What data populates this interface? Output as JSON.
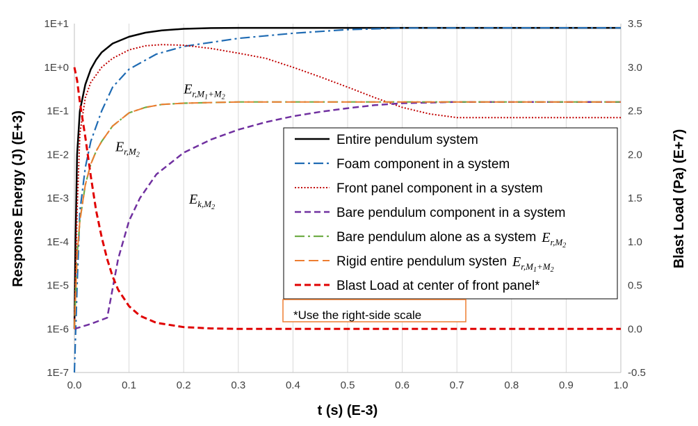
{
  "chart_data": {
    "type": "line",
    "xlabel": "t (s) (E-3)",
    "ylabel": "Response Energy (J) (E+3)",
    "y2label": "Blast Load (Pa) (E+7)",
    "xlim": [
      0,
      1
    ],
    "ylim": [
      1e-07,
      10
    ],
    "y_scale": "log",
    "y2lim": [
      -0.5,
      3.5
    ],
    "grid": "vertical",
    "legend_placement": "center-right",
    "x_ticks": [
      "0.0",
      "0.1",
      "0.2",
      "0.3",
      "0.4",
      "0.5",
      "0.6",
      "0.7",
      "0.8",
      "0.9",
      "1.0"
    ],
    "y_ticks": [
      "1E-7",
      "1E-6",
      "1E-5",
      "1E-4",
      "1E-3",
      "1E-2",
      "1E-1",
      "1E+0",
      "1E+1"
    ],
    "y2_ticks": [
      "-0.5",
      "0.0",
      "0.5",
      "1.0",
      "1.5",
      "2.0",
      "2.5",
      "3.0",
      "3.5"
    ],
    "series": [
      {
        "name": "Entire pendulum system",
        "color": "#000000",
        "dash": "solid",
        "axis": "left",
        "x": [
          0,
          0.002,
          0.005,
          0.01,
          0.02,
          0.03,
          0.04,
          0.05,
          0.07,
          0.1,
          0.13,
          0.16,
          0.2,
          0.25,
          0.3,
          0.4,
          0.5,
          0.7,
          1.0
        ],
        "y": [
          1e-06,
          0.0001,
          0.01,
          0.1,
          0.4,
          0.9,
          1.5,
          2.2,
          3.5,
          5.0,
          6.2,
          7.0,
          7.6,
          7.9,
          8.0,
          8.0,
          8.0,
          8.0,
          8.0
        ]
      },
      {
        "name": "Foam component in a system",
        "color": "#1f6bb3",
        "dash": "dashdot",
        "axis": "left",
        "x": [
          0,
          0.005,
          0.01,
          0.02,
          0.03,
          0.05,
          0.07,
          0.1,
          0.15,
          0.2,
          0.3,
          0.4,
          0.5,
          0.6,
          0.8,
          1.0
        ],
        "y": [
          1e-07,
          1e-05,
          0.0005,
          0.005,
          0.02,
          0.1,
          0.35,
          0.9,
          2.0,
          3.0,
          4.6,
          6.0,
          7.3,
          7.9,
          8.0,
          8.0
        ]
      },
      {
        "name": "Front panel component in a system",
        "color": "#c00000",
        "dash": "dotted",
        "axis": "left",
        "x": [
          0,
          0.005,
          0.01,
          0.02,
          0.03,
          0.05,
          0.07,
          0.1,
          0.13,
          0.16,
          0.2,
          0.25,
          0.3,
          0.35,
          0.4,
          0.45,
          0.5,
          0.55,
          0.6,
          0.65,
          0.7,
          0.8,
          0.9,
          1.0
        ],
        "y": [
          1e-06,
          0.0005,
          0.03,
          0.2,
          0.45,
          1.0,
          1.6,
          2.5,
          3.1,
          3.3,
          3.2,
          2.7,
          2.1,
          1.6,
          1.0,
          0.6,
          0.35,
          0.2,
          0.12,
          0.085,
          0.07,
          0.07,
          0.07,
          0.07
        ]
      },
      {
        "name": "Bare pendulum component in a system",
        "color": "#7030a0",
        "dash": "dashed",
        "axis": "left",
        "x": [
          0,
          0.03,
          0.06,
          0.08,
          0.1,
          0.12,
          0.15,
          0.2,
          0.25,
          0.3,
          0.35,
          0.4,
          0.45,
          0.5,
          0.55,
          0.6,
          0.7,
          0.8,
          1.0
        ],
        "y": [
          1e-06,
          1.3e-06,
          1.8e-06,
          4e-05,
          0.0003,
          0.001,
          0.0035,
          0.011,
          0.022,
          0.037,
          0.055,
          0.075,
          0.095,
          0.115,
          0.135,
          0.15,
          0.16,
          0.16,
          0.16
        ]
      },
      {
        "name": "Bare pendulum alone as a system",
        "legend_math": "E_{r,M_2}",
        "color": "#70ad47",
        "dash": "dashdot",
        "axis": "left",
        "x": [
          0,
          0.005,
          0.01,
          0.02,
          0.03,
          0.04,
          0.05,
          0.07,
          0.1,
          0.13,
          0.16,
          0.2,
          0.3,
          0.4,
          0.6,
          1.0
        ],
        "y": [
          1e-06,
          5e-05,
          0.0003,
          0.002,
          0.006,
          0.012,
          0.02,
          0.045,
          0.09,
          0.12,
          0.14,
          0.15,
          0.16,
          0.16,
          0.16,
          0.16
        ]
      },
      {
        "name": "Rigid entire pendulum systen",
        "legend_math": "E_{r,M_1+M_2}",
        "color": "#ed7d31",
        "dash": "longdash",
        "axis": "left",
        "x": [
          0,
          0.005,
          0.01,
          0.02,
          0.03,
          0.04,
          0.05,
          0.07,
          0.1,
          0.13,
          0.16,
          0.2,
          0.3,
          0.4,
          0.6,
          1.0
        ],
        "y": [
          1e-06,
          5e-05,
          0.0003,
          0.002,
          0.006,
          0.012,
          0.02,
          0.045,
          0.09,
          0.12,
          0.14,
          0.15,
          0.16,
          0.16,
          0.16,
          0.16
        ]
      },
      {
        "name": "Blast Load at center of front panel*",
        "color": "#e00000",
        "dash": "dashed",
        "axis": "right",
        "x": [
          0,
          0.005,
          0.01,
          0.02,
          0.03,
          0.04,
          0.05,
          0.06,
          0.07,
          0.08,
          0.1,
          0.12,
          0.15,
          0.2,
          0.25,
          0.3,
          0.4,
          0.6,
          0.8,
          1.0
        ],
        "y": [
          3.0,
          2.85,
          2.6,
          2.2,
          1.75,
          1.35,
          1.05,
          0.8,
          0.6,
          0.45,
          0.26,
          0.15,
          0.07,
          0.02,
          0.005,
          0.0,
          0.0,
          0.0,
          0.0,
          0.0
        ]
      }
    ],
    "annotations": [
      {
        "main": "E",
        "sub": "r,M",
        "sub2": "1",
        "sub3": "+M",
        "sub4": "2",
        "at_x": 0.2,
        "at_y": 0.25
      },
      {
        "main": "E",
        "sub": "r,M",
        "sub2": "2",
        "at_x": 0.075,
        "at_y": 0.012
      },
      {
        "main": "E",
        "sub": "k,M",
        "sub2": "2",
        "at_x": 0.21,
        "at_y": 0.00075
      }
    ],
    "note": "*Use the right-side scale"
  }
}
